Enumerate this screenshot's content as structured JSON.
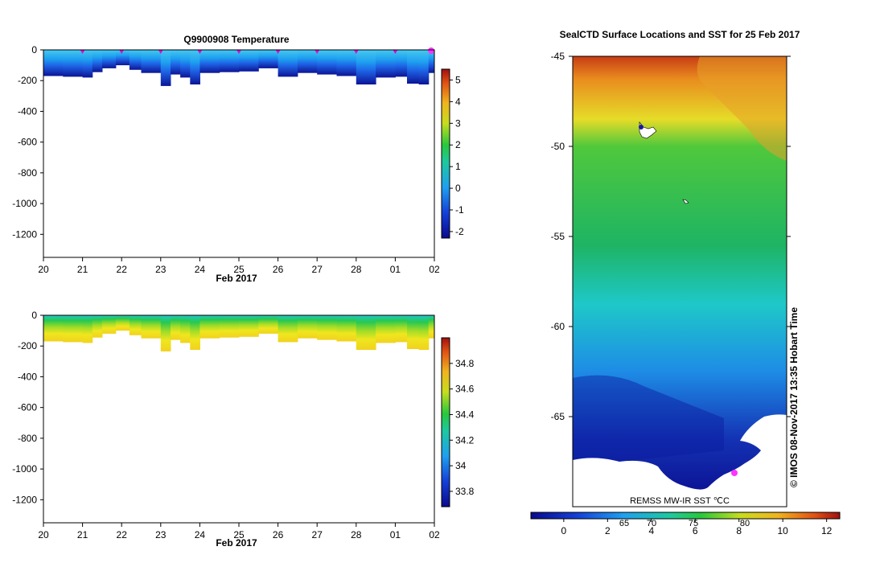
{
  "chart_data": [
    {
      "type": "heatmap",
      "title": "Q9900908  Temperature",
      "xlabel": "Feb 2017",
      "ylabel": "",
      "x_ticks": [
        "20",
        "21",
        "22",
        "23",
        "24",
        "25",
        "26",
        "27",
        "28",
        "01",
        "02"
      ],
      "y_ticks": [
        0,
        -200,
        -400,
        -600,
        -800,
        -1000,
        -1200
      ],
      "ylim": [
        -1350,
        0
      ],
      "colorbar": {
        "ticks": [
          5,
          4,
          3,
          2,
          1,
          0,
          -1,
          -2
        ],
        "range": [
          -2.3,
          5.5
        ]
      },
      "profiles": [
        {
          "day": 0.0,
          "depth": 170
        },
        {
          "day": 0.5,
          "depth": 175
        },
        {
          "day": 1.0,
          "depth": 180
        },
        {
          "day": 1.25,
          "depth": 145
        },
        {
          "day": 1.5,
          "depth": 120
        },
        {
          "day": 1.85,
          "depth": 100
        },
        {
          "day": 2.2,
          "depth": 130
        },
        {
          "day": 2.5,
          "depth": 150
        },
        {
          "day": 3.0,
          "depth": 235
        },
        {
          "day": 3.25,
          "depth": 160
        },
        {
          "day": 3.5,
          "depth": 180
        },
        {
          "day": 3.75,
          "depth": 225
        },
        {
          "day": 4.0,
          "depth": 150
        },
        {
          "day": 4.5,
          "depth": 145
        },
        {
          "day": 5.0,
          "depth": 140
        },
        {
          "day": 5.5,
          "depth": 120
        },
        {
          "day": 6.0,
          "depth": 175
        },
        {
          "day": 6.5,
          "depth": 150
        },
        {
          "day": 7.0,
          "depth": 160
        },
        {
          "day": 7.5,
          "depth": 170
        },
        {
          "day": 8.0,
          "depth": 225
        },
        {
          "day": 8.5,
          "depth": 180
        },
        {
          "day": 9.0,
          "depth": 175
        },
        {
          "day": 9.3,
          "depth": 220
        },
        {
          "day": 9.6,
          "depth": 225
        },
        {
          "day": 9.85,
          "depth": 150
        }
      ],
      "surface_markers": [
        1,
        2,
        3,
        4,
        5,
        6,
        7,
        8,
        9
      ],
      "highlight_marker": 10
    },
    {
      "type": "heatmap",
      "title": "",
      "xlabel": "Feb 2017",
      "ylabel": "",
      "x_ticks": [
        "20",
        "21",
        "22",
        "23",
        "24",
        "25",
        "26",
        "27",
        "28",
        "01",
        "02"
      ],
      "y_ticks": [
        0,
        -200,
        -400,
        -600,
        -800,
        -1000,
        -1200
      ],
      "ylim": [
        -1350,
        0
      ],
      "colorbar": {
        "ticks": [
          34.8,
          34.6,
          34.4,
          34.2,
          34,
          33.8
        ],
        "range": [
          33.68,
          35.0
        ]
      }
    },
    {
      "type": "heatmap",
      "title": "SealCTD Surface Locations and SST for 25 Feb 2017",
      "y_ticks": [
        -45,
        -50,
        -55,
        -60,
        -65
      ],
      "ylim": [
        -70,
        -45
      ],
      "inner_labels": [
        "65",
        "70",
        "75",
        "80"
      ],
      "source_label": "REMSS MW-IR SST ℃C",
      "side_label": "©  IMOS 08-Nov-2017 13:35 Hobart Time",
      "colorbar": {
        "ticks": [
          0,
          2,
          4,
          6,
          8,
          10,
          12
        ],
        "range": [
          -1.5,
          12.6
        ]
      }
    }
  ]
}
